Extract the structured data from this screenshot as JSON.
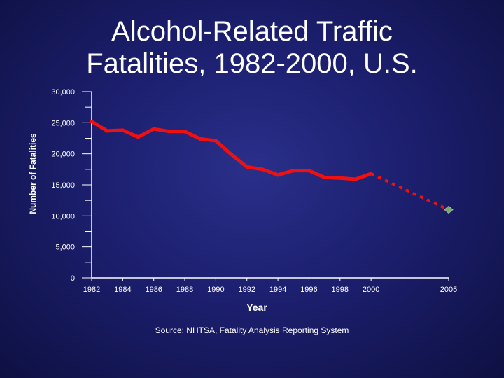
{
  "title_lines": [
    "Alcohol-Related Traffic",
    "Fatalities, 1982-2000, U.S."
  ],
  "source": "Source: NHTSA, Fatality Analysis Reporting System",
  "chart_data": {
    "type": "line",
    "title": "Alcohol-Related Traffic Fatalities, 1982-2000, U.S.",
    "xlabel": "Year",
    "ylabel": "Number of Fatalities",
    "xlim": [
      1982,
      2005
    ],
    "ylim": [
      0,
      30000
    ],
    "y_ticks": [
      0,
      5000,
      10000,
      15000,
      20000,
      25000,
      30000
    ],
    "y_tick_labels": [
      "0",
      "5,000",
      "10,000",
      "15,000",
      "20,000",
      "25,000",
      "30,000"
    ],
    "x_ticks": [
      1982,
      1984,
      1986,
      1988,
      1990,
      1992,
      1994,
      1996,
      1998,
      2000,
      2005
    ],
    "x_tick_labels": [
      "1982",
      "1984",
      "1986",
      "1988",
      "1990",
      "1992",
      "1994",
      "1996",
      "1998",
      "2000",
      "2005"
    ],
    "series": [
      {
        "color": "#ee1111",
        "style": "solid",
        "x": [
          1982,
          1983,
          1984,
          1985,
          1986,
          1987,
          1988,
          1989,
          1990,
          1991,
          1992,
          1993,
          1994,
          1995,
          1996,
          1997,
          1998,
          1999,
          2000
        ],
        "values": [
          25200,
          23700,
          23800,
          22700,
          24000,
          23600,
          23600,
          22400,
          22100,
          19900,
          17900,
          17500,
          16600,
          17300,
          17300,
          16200,
          16100,
          15900,
          16800
        ]
      },
      {
        "color": "#ee1111",
        "style": "dotted",
        "x": [
          2000,
          2005
        ],
        "values": [
          16800,
          11000
        ]
      }
    ],
    "markers": [
      {
        "x": 2005,
        "value": 11000,
        "shape": "diamond",
        "color": "#6fae5a"
      }
    ],
    "grid": false,
    "legend": "none"
  }
}
